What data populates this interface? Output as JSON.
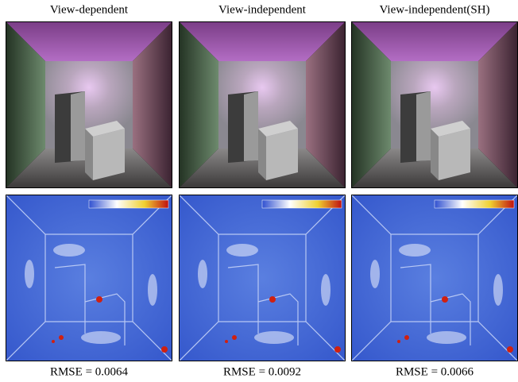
{
  "columns": [
    {
      "title": "View-dependent",
      "caption": "RMSE = 0.0064"
    },
    {
      "title": "View-independent",
      "caption": "RMSE = 0.0092"
    },
    {
      "title": "View-independent(SH)",
      "caption": "RMSE = 0.0066"
    }
  ]
}
